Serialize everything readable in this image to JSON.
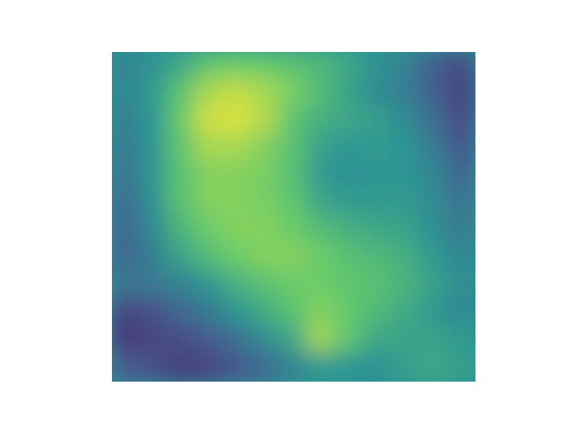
{
  "chart_data": {
    "type": "heatmap",
    "title": "",
    "xlabel": "",
    "ylabel": "",
    "colormap": "viridis",
    "axes_visible": false,
    "grid": false,
    "legend": "none",
    "colors": {
      "background": "#ffffff",
      "colormap_stops": [
        "#440154",
        "#3b528b",
        "#21908d",
        "#5dc863",
        "#fde725"
      ]
    },
    "rows": 12,
    "cols": 13,
    "values": [
      [
        0.42,
        0.48,
        0.58,
        0.72,
        0.76,
        0.74,
        0.7,
        0.66,
        0.58,
        0.48,
        0.42,
        0.28,
        0.2
      ],
      [
        0.44,
        0.52,
        0.7,
        0.86,
        0.9,
        0.86,
        0.78,
        0.68,
        0.56,
        0.46,
        0.4,
        0.28,
        0.18
      ],
      [
        0.4,
        0.5,
        0.74,
        0.92,
        0.94,
        0.88,
        0.72,
        0.62,
        0.58,
        0.54,
        0.46,
        0.34,
        0.2
      ],
      [
        0.38,
        0.5,
        0.72,
        0.86,
        0.86,
        0.8,
        0.7,
        0.56,
        0.5,
        0.52,
        0.5,
        0.4,
        0.24
      ],
      [
        0.36,
        0.5,
        0.7,
        0.8,
        0.8,
        0.78,
        0.7,
        0.52,
        0.48,
        0.5,
        0.5,
        0.44,
        0.3
      ],
      [
        0.32,
        0.48,
        0.7,
        0.8,
        0.8,
        0.78,
        0.72,
        0.58,
        0.52,
        0.52,
        0.52,
        0.46,
        0.36
      ],
      [
        0.3,
        0.44,
        0.64,
        0.76,
        0.8,
        0.8,
        0.76,
        0.68,
        0.62,
        0.58,
        0.56,
        0.48,
        0.38
      ],
      [
        0.3,
        0.4,
        0.56,
        0.68,
        0.76,
        0.8,
        0.8,
        0.76,
        0.7,
        0.66,
        0.62,
        0.52,
        0.44
      ],
      [
        0.36,
        0.38,
        0.42,
        0.5,
        0.62,
        0.7,
        0.76,
        0.76,
        0.72,
        0.7,
        0.64,
        0.56,
        0.46
      ],
      [
        0.18,
        0.22,
        0.3,
        0.38,
        0.5,
        0.6,
        0.7,
        0.8,
        0.74,
        0.66,
        0.6,
        0.52,
        0.44
      ],
      [
        0.14,
        0.18,
        0.2,
        0.26,
        0.34,
        0.46,
        0.58,
        0.84,
        0.72,
        0.58,
        0.56,
        0.56,
        0.52
      ],
      [
        0.26,
        0.22,
        0.16,
        0.18,
        0.24,
        0.32,
        0.42,
        0.52,
        0.5,
        0.48,
        0.54,
        0.58,
        0.54
      ]
    ]
  }
}
